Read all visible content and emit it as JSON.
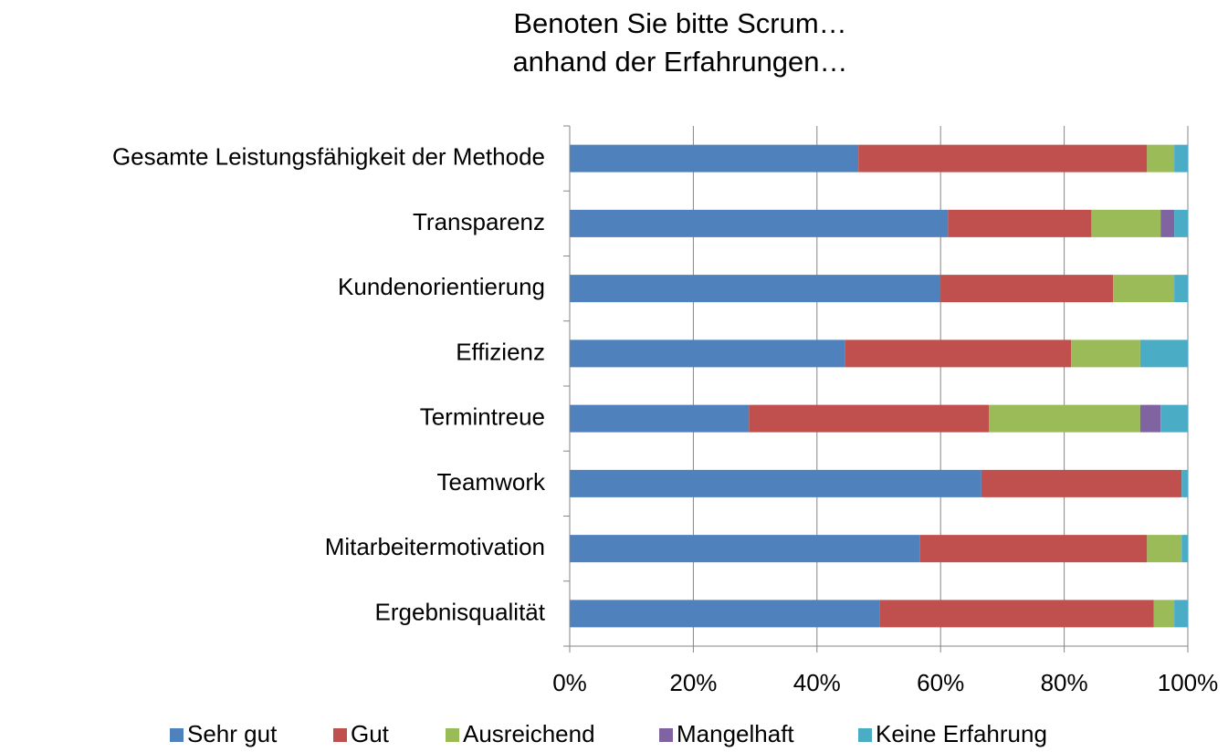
{
  "chart_data": {
    "type": "stacked-bar-horizontal",
    "title": "Benoten Sie bitte Scrum… anhand der Erfahrungen…",
    "categories": [
      "Gesamte Leistungsfähigkeit der Methode",
      "Transparenz",
      "Kundenorientierung",
      "Effizienz",
      "Termintreue",
      "Teamwork",
      "Mitarbeitermotivation",
      "Ergebnisqualität"
    ],
    "series": [
      {
        "name": "Sehr gut",
        "color": "#4f81bd",
        "values": [
          46.7,
          61.2,
          60.0,
          44.5,
          29.0,
          66.6,
          56.7,
          50.1
        ]
      },
      {
        "name": "Gut",
        "color": "#c0504d",
        "values": [
          46.7,
          23.2,
          27.9,
          36.6,
          38.8,
          32.4,
          36.7,
          44.4
        ]
      },
      {
        "name": "Ausreichend",
        "color": "#9bbb59",
        "values": [
          4.4,
          11.2,
          9.9,
          11.2,
          24.5,
          0,
          5.6,
          3.3
        ]
      },
      {
        "name": "Mangelhaft",
        "color": "#8064a2",
        "values": [
          0,
          2.2,
          0,
          0,
          3.3,
          0,
          0,
          0
        ]
      },
      {
        "name": "Keine Erfahrung",
        "color": "#4bacc6",
        "values": [
          2.2,
          2.2,
          2.2,
          7.7,
          4.4,
          1.0,
          1.0,
          2.2
        ]
      }
    ],
    "xlim": [
      0,
      100
    ],
    "xticks": [
      {
        "value": 0,
        "label": "0%"
      },
      {
        "value": 20,
        "label": "20%"
      },
      {
        "value": 40,
        "label": "40%"
      },
      {
        "value": 60,
        "label": "60%"
      },
      {
        "value": 80,
        "label": "80%"
      },
      {
        "value": 100,
        "label": "100%"
      }
    ],
    "grid": true,
    "legend": "bottom"
  }
}
